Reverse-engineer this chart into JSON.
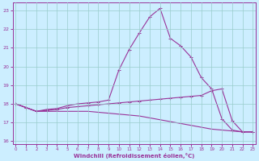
{
  "xlabel": "Windchill (Refroidissement éolien,°C)",
  "bg_color": "#cceeff",
  "line_color": "#993399",
  "grid_color": "#99cccc",
  "x_values": [
    0,
    1,
    2,
    3,
    4,
    5,
    6,
    7,
    8,
    9,
    10,
    11,
    12,
    13,
    14,
    15,
    16,
    17,
    18,
    19,
    20,
    21,
    22,
    23
  ],
  "line_upper": [
    18.0,
    17.8,
    17.6,
    17.7,
    17.75,
    17.9,
    18.0,
    18.05,
    18.1,
    18.2,
    19.8,
    20.9,
    21.8,
    22.65,
    23.1,
    21.5,
    21.1,
    20.5,
    19.4,
    18.8,
    17.2,
    16.6,
    16.5,
    16.5
  ],
  "line_mid": [
    18.0,
    17.8,
    17.6,
    17.65,
    17.7,
    17.8,
    17.85,
    17.9,
    17.95,
    18.0,
    18.05,
    18.1,
    18.15,
    18.2,
    18.25,
    18.3,
    18.35,
    18.4,
    18.45,
    18.7,
    18.8,
    17.1,
    16.5,
    16.5
  ],
  "line_lower": [
    18.0,
    17.8,
    17.6,
    17.6,
    17.6,
    17.6,
    17.6,
    17.6,
    17.55,
    17.5,
    17.45,
    17.4,
    17.35,
    17.25,
    17.15,
    17.05,
    16.95,
    16.85,
    16.75,
    16.65,
    16.6,
    16.55,
    16.5,
    16.5
  ],
  "ylim": [
    15.85,
    23.4
  ],
  "xlim": [
    -0.3,
    23.3
  ],
  "yticks": [
    16,
    17,
    18,
    19,
    20,
    21,
    22,
    23
  ],
  "xticks": [
    0,
    1,
    2,
    3,
    4,
    5,
    6,
    7,
    8,
    9,
    10,
    11,
    12,
    13,
    14,
    15,
    16,
    17,
    18,
    19,
    20,
    21,
    22,
    23
  ]
}
